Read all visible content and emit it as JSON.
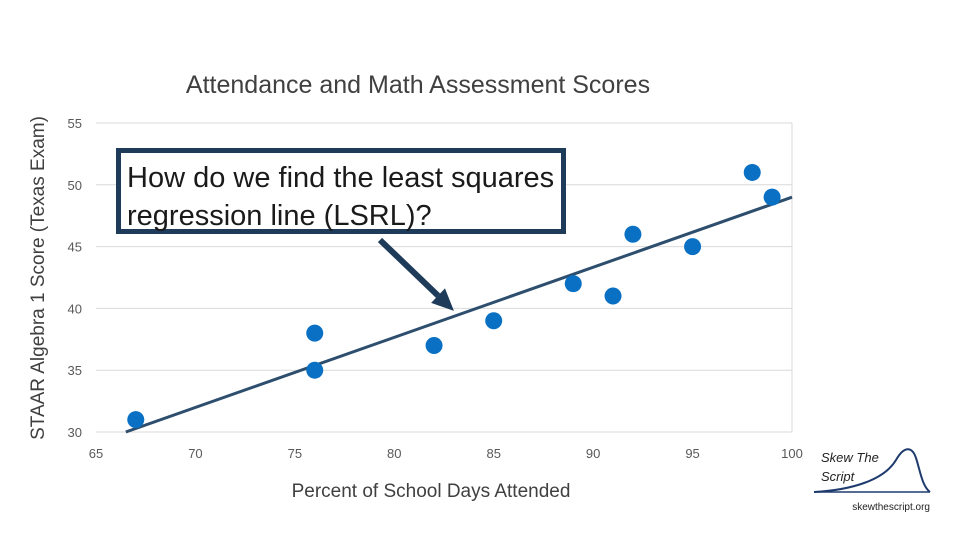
{
  "chart_data": {
    "type": "scatter",
    "title": "Attendance and Math Assessment Scores",
    "xlabel": "Percent of School Days Attended",
    "ylabel": "STAAR Algebra 1 Score (Texas Exam)",
    "xlim": [
      65,
      100
    ],
    "ylim": [
      30,
      55
    ],
    "x_ticks": [
      65,
      70,
      75,
      80,
      85,
      90,
      95,
      100
    ],
    "y_ticks": [
      30,
      35,
      40,
      45,
      50,
      55
    ],
    "grid": "horizontal",
    "points": [
      {
        "x": 67,
        "y": 31
      },
      {
        "x": 76,
        "y": 38
      },
      {
        "x": 76,
        "y": 35
      },
      {
        "x": 82,
        "y": 37
      },
      {
        "x": 85,
        "y": 39
      },
      {
        "x": 89,
        "y": 42
      },
      {
        "x": 91,
        "y": 41
      },
      {
        "x": 92,
        "y": 46
      },
      {
        "x": 95,
        "y": 45
      },
      {
        "x": 98,
        "y": 51
      },
      {
        "x": 99,
        "y": 49
      }
    ],
    "trendline": {
      "x1": 66.5,
      "y1": 30,
      "x2": 100,
      "y2": 49
    },
    "annotation": "How do we find the least squares regression line (LSRL)?",
    "annotation_target": {
      "x": 83,
      "y": 39.8
    },
    "colors": {
      "point": "#0a70c4",
      "line": "#2e4e6e",
      "grid": "#d9d9d9",
      "callout": "#1f3b5a"
    }
  },
  "brand": {
    "name": "Skew The Script",
    "url": "skewthescript.org"
  }
}
